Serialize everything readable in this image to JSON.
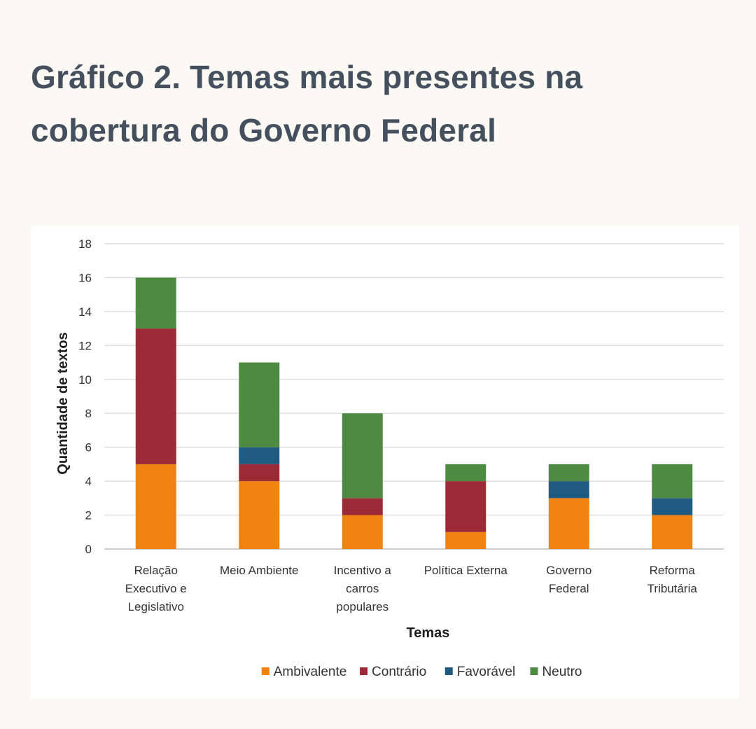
{
  "title": "Gráfico 2. Temas mais presentes na cobertura do Governo Federal",
  "chart_data": {
    "type": "bar",
    "stacked": true,
    "categories": [
      [
        "Relação",
        "Executivo e",
        "Legislativo"
      ],
      [
        "Meio Ambiente"
      ],
      [
        "Incentivo a",
        "carros",
        "populares"
      ],
      [
        "Política Externa"
      ],
      [
        "Governo",
        "Federal"
      ],
      [
        "Reforma",
        "Tributária"
      ]
    ],
    "series": [
      {
        "name": "Ambivalente",
        "color": "#f0820f",
        "values": [
          5,
          4,
          2,
          1,
          3,
          2
        ]
      },
      {
        "name": "Contrário",
        "color": "#9c2a36",
        "values": [
          8,
          1,
          1,
          3,
          0,
          0
        ]
      },
      {
        "name": "Favorável",
        "color": "#1f5a80",
        "values": [
          0,
          1,
          0,
          0,
          1,
          1
        ]
      },
      {
        "name": "Neutro",
        "color": "#4f8a43",
        "values": [
          3,
          5,
          5,
          1,
          1,
          2
        ]
      }
    ],
    "xlabel": "Temas",
    "ylabel": "Quantidade de textos",
    "ylim": [
      0,
      18
    ],
    "yticks": [
      0,
      2,
      4,
      6,
      8,
      10,
      12,
      14,
      16,
      18
    ],
    "grid": true,
    "legend_position": "bottom"
  }
}
